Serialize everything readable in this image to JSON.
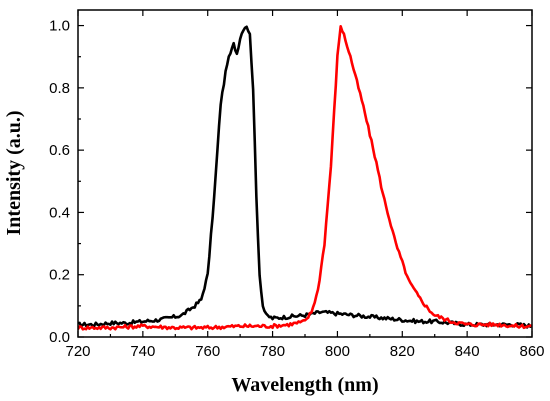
{
  "chart_data": {
    "type": "line",
    "xlabel": "Wavelength (nm)",
    "ylabel": "Intensity (a.u.)",
    "xlim": [
      720,
      860
    ],
    "ylim": [
      0.0,
      1.05
    ],
    "x_ticks": [
      "720",
      "740",
      "760",
      "780",
      "800",
      "820",
      "840",
      "860"
    ],
    "x_tick_values": [
      720,
      740,
      760,
      780,
      800,
      820,
      840,
      860
    ],
    "y_ticks": [
      "0.0",
      "0.2",
      "0.4",
      "0.6",
      "0.8",
      "1.0"
    ],
    "y_tick_values": [
      0.0,
      0.2,
      0.4,
      0.6,
      0.8,
      1.0
    ],
    "grid": false,
    "series": [
      {
        "color": "#000000",
        "x": [
          720,
          725,
          730,
          735,
          740,
          745,
          750,
          752,
          754,
          756,
          758,
          760,
          762,
          764,
          766,
          768,
          769,
          770,
          771,
          772,
          773,
          774,
          775,
          776,
          777,
          778,
          780,
          785,
          790,
          795,
          800,
          805,
          810,
          815,
          820,
          825,
          830,
          835,
          840,
          845,
          850,
          855,
          860
        ],
        "y": [
          0.04,
          0.04,
          0.045,
          0.045,
          0.05,
          0.055,
          0.065,
          0.07,
          0.085,
          0.1,
          0.12,
          0.2,
          0.45,
          0.75,
          0.88,
          0.94,
          0.91,
          0.96,
          0.99,
          1.0,
          0.97,
          0.8,
          0.45,
          0.2,
          0.1,
          0.07,
          0.06,
          0.065,
          0.07,
          0.08,
          0.075,
          0.07,
          0.065,
          0.06,
          0.055,
          0.05,
          0.05,
          0.045,
          0.04,
          0.04,
          0.04,
          0.04,
          0.035
        ]
      },
      {
        "color": "#ff0000",
        "x": [
          720,
          730,
          740,
          750,
          760,
          770,
          780,
          785,
          790,
          792,
          794,
          796,
          798,
          800,
          801,
          802,
          804,
          806,
          808,
          810,
          812,
          814,
          816,
          818,
          820,
          822,
          825,
          828,
          830,
          835,
          840,
          845,
          850,
          855,
          860
        ],
        "y": [
          0.03,
          0.03,
          0.035,
          0.03,
          0.03,
          0.035,
          0.035,
          0.04,
          0.05,
          0.08,
          0.15,
          0.3,
          0.55,
          0.9,
          1.0,
          0.97,
          0.9,
          0.82,
          0.74,
          0.65,
          0.56,
          0.46,
          0.38,
          0.3,
          0.24,
          0.18,
          0.13,
          0.09,
          0.07,
          0.05,
          0.04,
          0.04,
          0.04,
          0.035,
          0.035
        ]
      }
    ]
  }
}
